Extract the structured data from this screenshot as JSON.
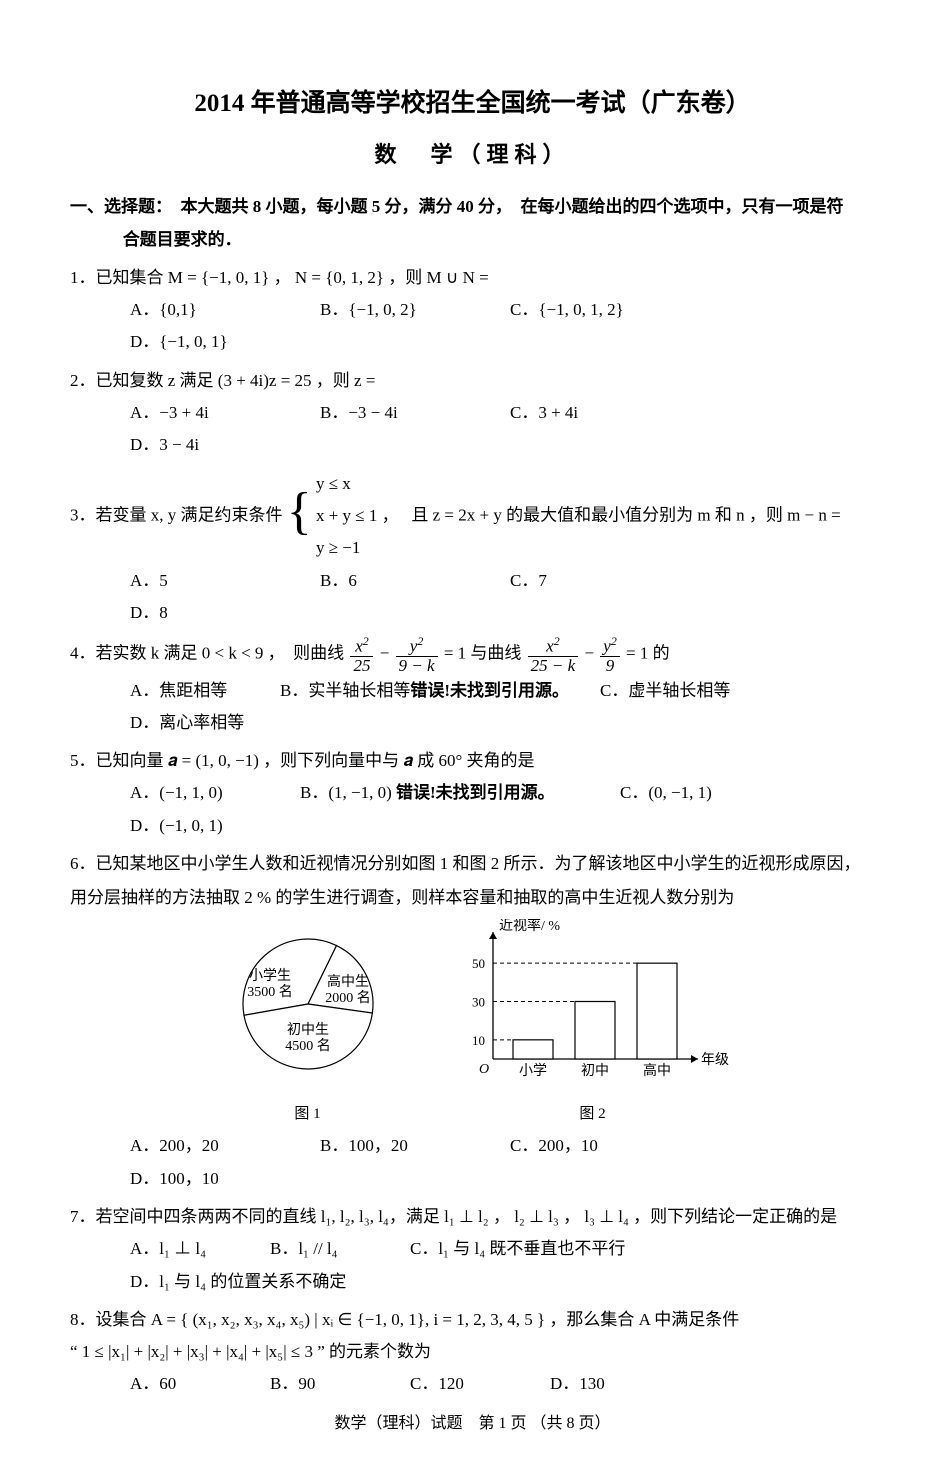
{
  "title_main": "2014 年普通高等学校招生全国统一考试（广东卷）",
  "title_sub": "数　学（理科）",
  "section1_line1": "一、选择题：　本大题共 8 小题，每小题 5 分，满分 40 分，　在每小题给出的四个选项中，只有一项是符",
  "section1_line2": "合题目要求的．",
  "q1_text": "1．已知集合 M = {−1, 0, 1} ，  N = {0, 1, 2} ，则 M ∪ N =",
  "q1_A": "A．{0,1}",
  "q1_B": "B．{−1, 0, 2}",
  "q1_C": "C．{−1, 0, 1, 2}",
  "q1_D": "D．{−1, 0, 1}",
  "q2_text": "2．已知复数 z 满足 (3 + 4i)z = 25 ，则 z =",
  "q2_A": "A．−3 + 4i",
  "q2_B": "B．−3 − 4i",
  "q2_C": "C．3 + 4i",
  "q2_D": "D．3 − 4i",
  "q3_pre": "3．若变量 x, y 满足约束条件",
  "q3_c1": "y ≤ x",
  "q3_c2": "x + y ≤ 1 ，",
  "q3_c3": "y ≥ −1",
  "q3_post": "且 z = 2x + y 的最大值和最小值分别为 m 和 n ，则 m − n =",
  "q3_A": "A．5",
  "q3_B": "B．6",
  "q3_C": "C．7",
  "q3_D": "D．8",
  "q4_pre": "4．若实数 k 满足 0 < k < 9 ，　则曲线 ",
  "q4_mid": " = 1 与曲线 ",
  "q4_post": " = 1 的",
  "q4_A": "A．焦距相等",
  "q4_B_pre": "B．实半轴长相等",
  "q4_B_err": "错误!未找到引用源。",
  "q4_C": "C．虚半轴长相等",
  "q4_D": "D．离心率相等",
  "q5_text": "5．已知向量 𝒂 = (1, 0, −1) ，则下列向量中与 𝒂 成 60° 夹角的是",
  "q5_A": "A．(−1, 1, 0)",
  "q5_B_pre": "B．(1, −1, 0) ",
  "q5_B_err": "错误!未找到引用源。",
  "q5_C": "C．(0, −1, 1)",
  "q5_D": "D．(−1, 0, 1)",
  "q6_p1": "6．已知某地区中小学生人数和近视情况分别如图 1 和图 2 所示．为了解该地区中小学生的近视形成原因，",
  "q6_p2": "用分层抽样的方法抽取 2 % 的学生进行调查，则样本容量和抽取的高中生近视人数分别为",
  "q6_A": "A．200，20",
  "q6_B": "B．100，20",
  "q6_C": "C．200，10",
  "q6_D": "D．100，10",
  "q7_text": "7．若空间中四条两两不同的直线 l₁, l₂, l₃, l₄，满足 l₁ ⊥ l₂ ， l₂ ⊥ l₃ ， l₃ ⊥ l₄ ，则下列结论一定正确的是",
  "q7_A": "A．l₁ ⊥ l₄",
  "q7_B": "B．l₁ // l₄",
  "q7_C": "C．l₁ 与 l₄ 既不垂直也不平行",
  "q7_D": "D．l₁ 与 l₄ 的位置关系不确定",
  "q8_l1": "8．设集合 A = { (x₁, x₂, x₃, x₄, x₅)  | xᵢ ∈ {−1, 0, 1}, i = 1, 2, 3, 4, 5 } ，那么集合 A 中满足条件",
  "q8_l2": "“ 1 ≤ |x₁| + |x₂| + |x₃| + |x₄| + |x₅| ≤ 3 ” 的元素个数为",
  "q8_A": "A．60",
  "q8_B": "B．90",
  "q8_C": "C．120",
  "q8_D": "D．130",
  "footer": "数学（理科）试题　第  1  页 （共  8  页）",
  "pie": {
    "caption": "图 1",
    "slices": [
      {
        "label1": "小学生",
        "label2": "3500 名",
        "value": 3500,
        "start": 170,
        "end": 296,
        "cx_label": -38,
        "cy_label": -24
      },
      {
        "label1": "高中生",
        "label2": "2000 名",
        "value": 2000,
        "start": 296,
        "end": 368,
        "cx_label": 40,
        "cy_label": -18
      },
      {
        "label1": "初中生",
        "label2": "4500 名",
        "value": 4500,
        "start": 8,
        "end": 170,
        "cx_label": 0,
        "cy_label": 30
      }
    ],
    "stroke": "#000000",
    "fill": "#ffffff"
  },
  "bar": {
    "caption": "图 2",
    "ylabel": "近视率/ %",
    "xlabel": "年级",
    "categories": [
      "小学",
      "初中",
      "高中"
    ],
    "values": [
      10,
      30,
      50
    ],
    "yticks": [
      10,
      30,
      50
    ],
    "ymax": 60,
    "bar_fill": "#ffffff",
    "bar_stroke": "#000000",
    "axis_color": "#000000",
    "dash_color": "#000000"
  }
}
